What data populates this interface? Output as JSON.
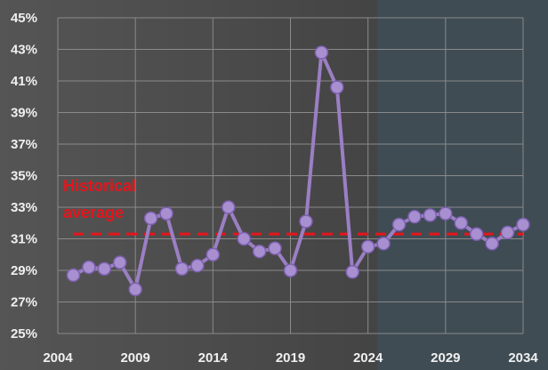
{
  "chart_data": {
    "type": "line",
    "title": "",
    "xlabel": "",
    "ylabel": "",
    "x": [
      2005,
      2006,
      2007,
      2008,
      2009,
      2010,
      2011,
      2012,
      2013,
      2014,
      2015,
      2016,
      2017,
      2018,
      2019,
      2020,
      2021,
      2022,
      2023,
      2024,
      2025,
      2026,
      2027,
      2028,
      2029,
      2030,
      2031,
      2032,
      2033,
      2034
    ],
    "series": [
      {
        "values": [
          28.7,
          29.2,
          29.1,
          29.5,
          27.8,
          32.3,
          32.6,
          29.1,
          29.3,
          30.0,
          33.0,
          31.0,
          30.2,
          30.4,
          29.0,
          32.1,
          42.8,
          40.6,
          28.9,
          30.5,
          30.7,
          31.9,
          32.4,
          32.5,
          32.6,
          32.0,
          31.3,
          30.7,
          31.4,
          31.9
        ]
      }
    ],
    "reference_line": {
      "value": 31.3,
      "label_line1": "Historical",
      "label_line2": "average",
      "color": "#e8141b"
    },
    "forecast_region": {
      "x_start": 2024.6,
      "x_end": 2034.5
    },
    "xlim": [
      2004,
      2034
    ],
    "ylim": [
      25,
      45
    ],
    "x_ticks": [
      "2004",
      "2009",
      "2014",
      "2019",
      "2024",
      "2029",
      "2034"
    ],
    "y_ticks": [
      "25%",
      "27%",
      "29%",
      "31%",
      "33%",
      "35%",
      "37%",
      "39%",
      "41%",
      "43%",
      "45%"
    ],
    "grid": true,
    "colors": {
      "line": "#9b7fc4",
      "marker_fill": "#a890d0",
      "marker_edge": "#7d5fb0",
      "grid": "#8a8a8a",
      "forecast_shade": "#3f4e57"
    }
  }
}
